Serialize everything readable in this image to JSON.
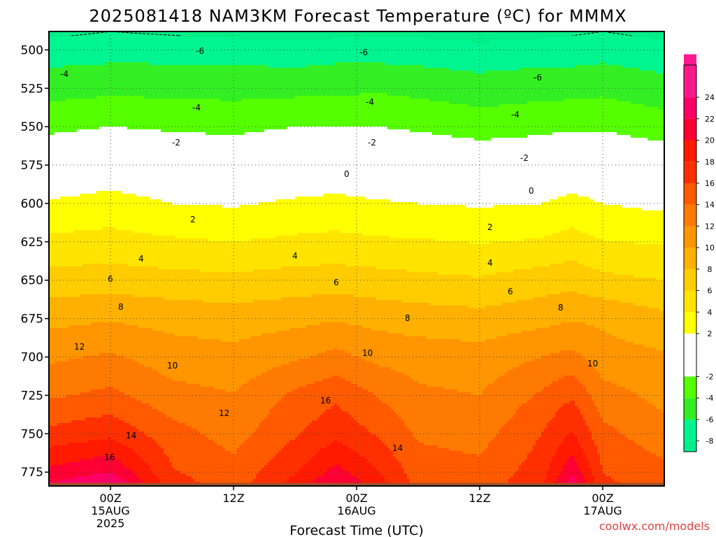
{
  "title": "2025081418 NAM3KM Forecast Temperature (ºC) for MMMX",
  "credit": "coolwx.com/models",
  "colors": {
    "bands": [
      {
        "min": -9,
        "max": -8,
        "color": "#00ee88"
      },
      {
        "min": -8,
        "max": -6,
        "color": "#00f590"
      },
      {
        "min": -6,
        "max": -4,
        "color": "#33ee22"
      },
      {
        "min": -4,
        "max": -2,
        "color": "#55ff00"
      },
      {
        "min": -2,
        "max": 2,
        "color": "#ffffff"
      },
      {
        "min": 2,
        "max": 4,
        "color": "#ffff00"
      },
      {
        "min": 4,
        "max": 6,
        "color": "#ffe400"
      },
      {
        "min": 6,
        "max": 8,
        "color": "#ffcc00"
      },
      {
        "min": 8,
        "max": 10,
        "color": "#ffb000"
      },
      {
        "min": 10,
        "max": 12,
        "color": "#ff9500"
      },
      {
        "min": 12,
        "max": 14,
        "color": "#ff7a00"
      },
      {
        "min": 14,
        "max": 16,
        "color": "#ff5a00"
      },
      {
        "min": 16,
        "max": 18,
        "color": "#ff3000"
      },
      {
        "min": 18,
        "max": 20,
        "color": "#ff1a00"
      },
      {
        "min": 20,
        "max": 22,
        "color": "#ff0033"
      },
      {
        "min": 22,
        "max": 24,
        "color": "#ff0066"
      },
      {
        "min": 24,
        "max": 28,
        "color": "#ff1a8c"
      }
    ],
    "ground": "#a0522d",
    "zero_line": "#c0186a"
  },
  "chart_data": {
    "type": "heatmap",
    "title": "2025081418 NAM3KM Forecast Temperature (ºC) for MMMX",
    "xlabel": "Forecast Time (UTC)",
    "ylabel": "",
    "x_unit": "forecast hour",
    "xlim": [
      0,
      60
    ],
    "ylim": [
      488,
      784
    ],
    "y_reversed": true,
    "x_ticks": [
      {
        "hour": 6,
        "label": "00Z",
        "date": "15AUG",
        "year": "2025"
      },
      {
        "hour": 18,
        "label": "12Z",
        "date": "",
        "year": ""
      },
      {
        "hour": 30,
        "label": "00Z",
        "date": "16AUG",
        "year": ""
      },
      {
        "hour": 42,
        "label": "12Z",
        "date": "",
        "year": ""
      },
      {
        "hour": 54,
        "label": "00Z",
        "date": "17AUG",
        "year": ""
      }
    ],
    "y_ticks": [
      500,
      525,
      550,
      575,
      600,
      625,
      650,
      675,
      700,
      725,
      750,
      775
    ],
    "grid": true,
    "surface_pressure_hpa": 782,
    "contour_labels": [
      "-6",
      "-6",
      "-6",
      "-4",
      "-4",
      "-4",
      "-4",
      "-2",
      "-2",
      "-2",
      "0",
      "0",
      "2",
      "2",
      "4",
      "4",
      "4",
      "6",
      "6",
      "6",
      "8",
      "8",
      "8",
      "10",
      "10",
      "10",
      "12",
      "12",
      "16",
      "14",
      "14",
      "16"
    ],
    "colorbar": {
      "ticks": [
        -8,
        -6,
        -4,
        -2,
        2,
        4,
        6,
        8,
        10,
        12,
        14,
        16,
        18,
        20,
        22,
        24
      ],
      "min": -9,
      "max": 27,
      "position": "right"
    },
    "temperature_c": {
      "x_hours": [
        0,
        6,
        12,
        18,
        24,
        28,
        32,
        36,
        42,
        48,
        51,
        54,
        60
      ],
      "pressure_hpa": [
        488,
        500,
        525,
        550,
        575,
        600,
        625,
        650,
        675,
        700,
        725,
        750,
        775,
        784
      ],
      "values": [
        [
          -8.5,
          -7.0,
          -4.8,
          -2.5,
          0.0,
          2.2,
          4.5,
          6.8,
          9.4,
          11.6,
          13.7,
          16.6,
          20.5,
          22.5
        ],
        [
          -8.0,
          -6.8,
          -4.5,
          -2.0,
          0.5,
          2.8,
          4.7,
          7.0,
          9.8,
          12.3,
          14.5,
          17.5,
          22.0,
          24.5
        ],
        [
          -8.3,
          -6.8,
          -4.6,
          -2.3,
          0.0,
          2.0,
          4.3,
          6.7,
          9.3,
          11.0,
          12.7,
          14.8,
          16.2,
          17.0
        ],
        [
          -8.7,
          -6.8,
          -4.7,
          -2.5,
          -0.2,
          1.8,
          4.0,
          6.5,
          9.0,
          10.6,
          12.1,
          13.2,
          14.7,
          15.0
        ],
        [
          -8.8,
          -7.2,
          -4.6,
          -2.0,
          0.3,
          2.3,
          4.4,
          6.9,
          9.4,
          11.7,
          14.4,
          15.8,
          17.8,
          19.0
        ],
        [
          -8.7,
          -6.8,
          -4.5,
          -1.9,
          0.5,
          2.5,
          4.6,
          7.0,
          9.8,
          12.6,
          15.6,
          17.4,
          20.7,
          22.5
        ],
        [
          -8.4,
          -6.9,
          -4.3,
          -2.0,
          0.3,
          2.2,
          4.3,
          6.8,
          9.3,
          11.5,
          13.9,
          15.8,
          18.2,
          19.0
        ],
        [
          -8.5,
          -7.0,
          -4.6,
          -2.3,
          0.0,
          2.0,
          4.2,
          6.5,
          9.0,
          11.1,
          12.4,
          13.7,
          15.0,
          15.5
        ],
        [
          -8.9,
          -7.3,
          -5.1,
          -2.9,
          -0.3,
          1.8,
          3.9,
          6.2,
          8.7,
          10.8,
          12.0,
          13.2,
          14.6,
          15.0
        ],
        [
          -8.6,
          -7.0,
          -4.8,
          -2.5,
          -0.2,
          2.0,
          4.2,
          7.0,
          9.3,
          12.0,
          14.3,
          16.0,
          17.0,
          17.5
        ],
        [
          -8.3,
          -7.0,
          -4.7,
          -2.3,
          0.3,
          2.6,
          4.8,
          7.3,
          9.8,
          12.6,
          15.8,
          18.2,
          21.5,
          23.5
        ],
        [
          -8.0,
          -6.8,
          -4.5,
          -2.3,
          0.2,
          2.0,
          4.1,
          6.5,
          9.6,
          10.8,
          12.8,
          14.6,
          16.0,
          16.5
        ],
        [
          -8.6,
          -7.3,
          -5.2,
          -3.0,
          -0.5,
          1.5,
          3.8,
          6.0,
          8.5,
          10.3,
          11.4,
          12.7,
          14.6,
          15.0
        ]
      ]
    }
  }
}
